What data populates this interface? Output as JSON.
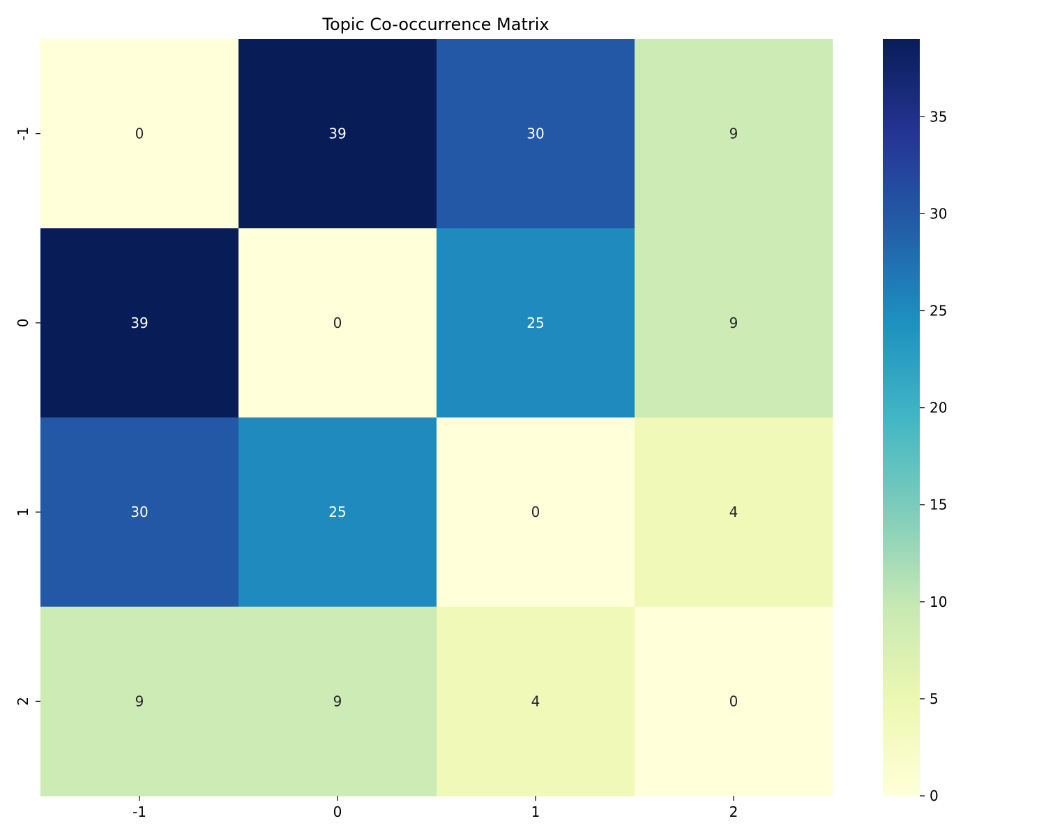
{
  "chart_data": {
    "type": "heatmap",
    "title": "Topic Co-occurrence Matrix",
    "x_categories": [
      "-1",
      "0",
      "1",
      "2"
    ],
    "y_categories": [
      "-1",
      "0",
      "1",
      "2"
    ],
    "values": [
      [
        0,
        39,
        30,
        9
      ],
      [
        39,
        0,
        25,
        9
      ],
      [
        30,
        25,
        0,
        4
      ],
      [
        9,
        9,
        4,
        0
      ]
    ],
    "colormap": "YlGnBu",
    "colorbar": {
      "range": [
        0,
        39
      ],
      "ticks": [
        0,
        5,
        10,
        15,
        20,
        25,
        30,
        35
      ]
    },
    "annotated": true
  }
}
